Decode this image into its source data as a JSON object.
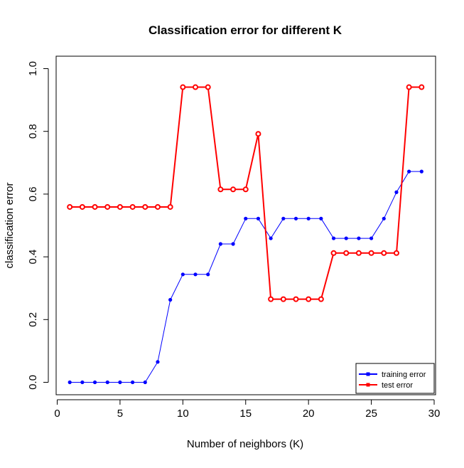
{
  "chart_data": {
    "type": "line",
    "title": "Classification error for different K",
    "xlabel": "Number of neighbors (K)",
    "ylabel": "classification error",
    "xlim": [
      0,
      30
    ],
    "ylim": [
      0,
      1.0
    ],
    "x_ticks": [
      0,
      5,
      10,
      15,
      20,
      25,
      30
    ],
    "y_ticks": [
      0.0,
      0.2,
      0.4,
      0.6,
      0.8,
      1.0
    ],
    "x_tick_labels": [
      "0",
      "5",
      "10",
      "15",
      "20",
      "25",
      "30"
    ],
    "y_tick_labels": [
      "0.0",
      "0.2",
      "0.4",
      "0.6",
      "0.8",
      "1.0"
    ],
    "grid": false,
    "legend_position": "bottom-right",
    "x": [
      1,
      2,
      3,
      4,
      5,
      6,
      7,
      8,
      9,
      10,
      11,
      12,
      13,
      14,
      15,
      16,
      17,
      18,
      19,
      20,
      21,
      22,
      23,
      24,
      25,
      26,
      27,
      28,
      29
    ],
    "series": [
      {
        "name": "training error",
        "color": "#0000ff",
        "marker": "filled-circle",
        "values": [
          0,
          0,
          0,
          0,
          0,
          0,
          0,
          0.065,
          0.263,
          0.344,
          0.344,
          0.344,
          0.441,
          0.441,
          0.522,
          0.522,
          0.459,
          0.522,
          0.522,
          0.522,
          0.522,
          0.459,
          0.459,
          0.459,
          0.459,
          0.522,
          0.606,
          0.672,
          0.672
        ]
      },
      {
        "name": "test error",
        "color": "#ff0000",
        "marker": "open-circle",
        "values": [
          0.559,
          0.559,
          0.559,
          0.559,
          0.559,
          0.559,
          0.559,
          0.559,
          0.559,
          0.941,
          0.941,
          0.941,
          0.615,
          0.615,
          0.615,
          0.792,
          0.265,
          0.265,
          0.265,
          0.265,
          0.265,
          0.412,
          0.412,
          0.412,
          0.412,
          0.412,
          0.412,
          0.941,
          0.941
        ]
      }
    ]
  }
}
